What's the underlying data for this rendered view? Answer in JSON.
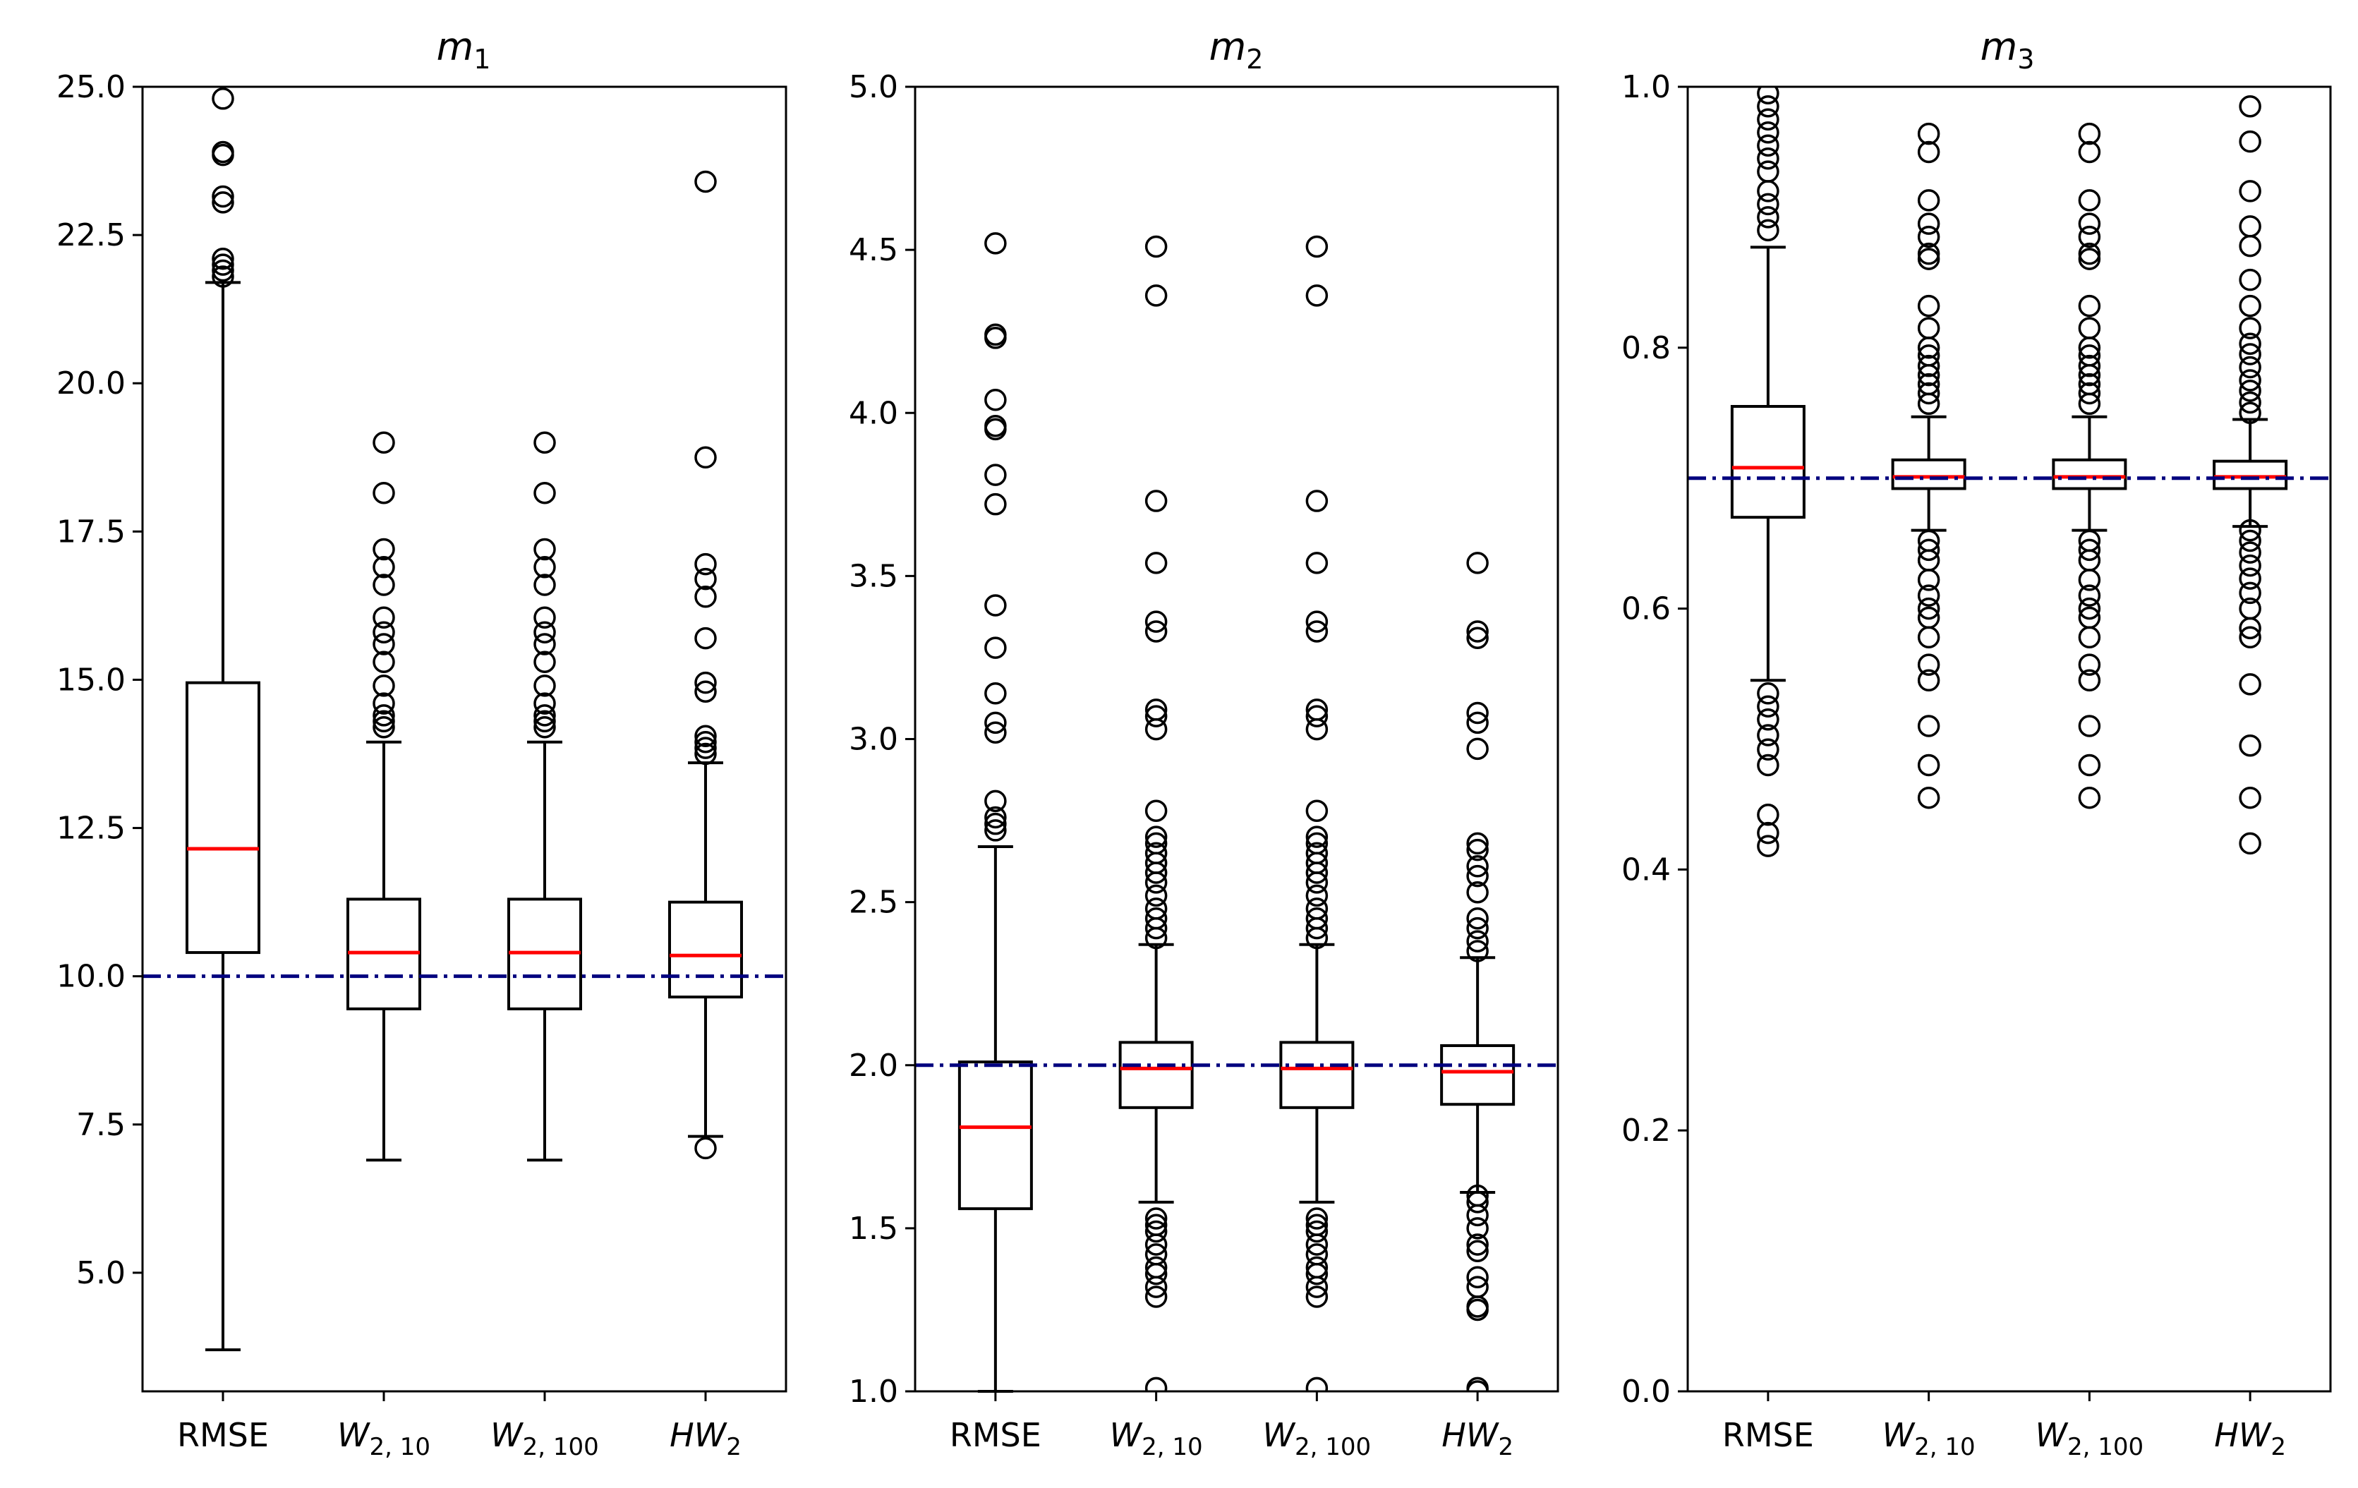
{
  "colors": {
    "box": "#000000",
    "median": "#ff0000",
    "reference_line": "#00007f",
    "background": "#ffffff"
  },
  "chart_data": [
    {
      "type": "box",
      "title": "m",
      "title_subscript": "1",
      "categories": [
        "RMSE",
        "W_{2,10}",
        "W_{2,100}",
        "HW_2"
      ],
      "category_labels": [
        {
          "base": "RMSE",
          "sub": "",
          "italic": false
        },
        {
          "base": "W",
          "sub": "2, 10",
          "italic": true
        },
        {
          "base": "W",
          "sub": "2, 100",
          "italic": true
        },
        {
          "base": "HW",
          "sub": "2",
          "italic": true
        }
      ],
      "ylim": [
        3.0,
        25.0
      ],
      "yticks": [
        5.0,
        7.5,
        10.0,
        12.5,
        15.0,
        17.5,
        20.0,
        22.5,
        25.0
      ],
      "ytick_labels": [
        "5.0",
        "7.5",
        "10.0",
        "12.5",
        "15.0",
        "17.5",
        "20.0",
        "22.5",
        "25.0"
      ],
      "reference_value": 10.0,
      "boxes": [
        {
          "whisker_low": 3.7,
          "q1": 10.4,
          "median": 12.15,
          "q3": 14.95,
          "whisker_high": 21.7,
          "outliers": [
            21.8,
            21.9,
            22.0,
            22.1,
            23.05,
            23.15,
            23.85,
            23.9,
            24.8
          ]
        },
        {
          "whisker_low": 6.9,
          "q1": 9.45,
          "median": 10.4,
          "q3": 11.3,
          "whisker_high": 13.95,
          "outliers": [
            14.2,
            14.3,
            14.4,
            14.6,
            14.9,
            15.3,
            15.6,
            15.8,
            16.05,
            16.6,
            16.9,
            17.2,
            18.15,
            19.0
          ]
        },
        {
          "whisker_low": 6.9,
          "q1": 9.45,
          "median": 10.4,
          "q3": 11.3,
          "whisker_high": 13.95,
          "outliers": [
            14.2,
            14.3,
            14.4,
            14.6,
            14.9,
            15.3,
            15.6,
            15.8,
            16.05,
            16.6,
            16.9,
            17.2,
            18.15,
            19.0
          ]
        },
        {
          "whisker_low": 7.3,
          "q1": 9.65,
          "median": 10.35,
          "q3": 11.25,
          "whisker_high": 13.6,
          "outliers": [
            7.1,
            13.75,
            13.85,
            13.95,
            14.05,
            14.8,
            14.95,
            15.7,
            16.4,
            16.7,
            16.95,
            18.75,
            23.4
          ]
        }
      ]
    },
    {
      "type": "box",
      "title": "m",
      "title_subscript": "2",
      "categories": [
        "RMSE",
        "W_{2,10}",
        "W_{2,100}",
        "HW_2"
      ],
      "category_labels": [
        {
          "base": "RMSE",
          "sub": "",
          "italic": false
        },
        {
          "base": "W",
          "sub": "2, 10",
          "italic": true
        },
        {
          "base": "W",
          "sub": "2, 100",
          "italic": true
        },
        {
          "base": "HW",
          "sub": "2",
          "italic": true
        }
      ],
      "ylim": [
        1.0,
        5.0
      ],
      "yticks": [
        1.0,
        1.5,
        2.0,
        2.5,
        3.0,
        3.5,
        4.0,
        4.5,
        5.0
      ],
      "ytick_labels": [
        "1.0",
        "1.5",
        "2.0",
        "2.5",
        "3.0",
        "3.5",
        "4.0",
        "4.5",
        "5.0"
      ],
      "reference_value": 2.0,
      "boxes": [
        {
          "whisker_low": 1.0,
          "q1": 1.56,
          "median": 1.81,
          "q3": 2.01,
          "whisker_high": 2.67,
          "outliers": [
            2.72,
            2.74,
            2.76,
            2.81,
            3.02,
            3.05,
            3.14,
            3.28,
            3.41,
            3.72,
            3.81,
            3.95,
            3.96,
            4.04,
            4.23,
            4.24,
            4.52
          ]
        },
        {
          "whisker_low": 1.58,
          "q1": 1.87,
          "median": 1.99,
          "q3": 2.07,
          "whisker_high": 2.37,
          "outliers": [
            1.01,
            1.29,
            1.32,
            1.36,
            1.38,
            1.42,
            1.45,
            1.49,
            1.51,
            1.53,
            2.39,
            2.42,
            2.45,
            2.48,
            2.52,
            2.56,
            2.59,
            2.62,
            2.65,
            2.68,
            2.7,
            2.78,
            3.03,
            3.07,
            3.09,
            3.33,
            3.36,
            3.54,
            3.73,
            4.36,
            4.51
          ]
        },
        {
          "whisker_low": 1.58,
          "q1": 1.87,
          "median": 1.99,
          "q3": 2.07,
          "whisker_high": 2.37,
          "outliers": [
            1.01,
            1.29,
            1.32,
            1.36,
            1.38,
            1.42,
            1.45,
            1.49,
            1.51,
            1.53,
            2.39,
            2.42,
            2.45,
            2.48,
            2.52,
            2.56,
            2.59,
            2.62,
            2.65,
            2.68,
            2.7,
            2.78,
            3.03,
            3.07,
            3.09,
            3.33,
            3.36,
            3.54,
            3.73,
            4.36,
            4.51
          ]
        },
        {
          "whisker_low": 1.61,
          "q1": 1.88,
          "median": 1.98,
          "q3": 2.06,
          "whisker_high": 2.33,
          "outliers": [
            1.0,
            1.01,
            1.25,
            1.26,
            1.32,
            1.35,
            1.43,
            1.45,
            1.5,
            1.54,
            1.58,
            1.6,
            2.35,
            2.38,
            2.42,
            2.45,
            2.53,
            2.58,
            2.61,
            2.66,
            2.68,
            2.97,
            3.05,
            3.08,
            3.31,
            3.33,
            3.54
          ]
        }
      ]
    },
    {
      "type": "box",
      "title": "m",
      "title_subscript": "3",
      "categories": [
        "RMSE",
        "W_{2,10}",
        "W_{2,100}",
        "HW_2"
      ],
      "category_labels": [
        {
          "base": "RMSE",
          "sub": "",
          "italic": false
        },
        {
          "base": "W",
          "sub": "2, 10",
          "italic": true
        },
        {
          "base": "W",
          "sub": "2, 100",
          "italic": true
        },
        {
          "base": "HW",
          "sub": "2",
          "italic": true
        }
      ],
      "ylim": [
        0.0,
        1.0
      ],
      "yticks": [
        0.0,
        0.2,
        0.4,
        0.6,
        0.8,
        1.0
      ],
      "ytick_labels": [
        "0.0",
        "0.2",
        "0.4",
        "0.6",
        "0.8",
        "1.0"
      ],
      "reference_value": 0.7,
      "boxes": [
        {
          "whisker_low": 0.545,
          "q1": 0.67,
          "median": 0.708,
          "q3": 0.755,
          "whisker_high": 0.877,
          "outliers": [
            0.418,
            0.428,
            0.442,
            0.48,
            0.492,
            0.503,
            0.515,
            0.525,
            0.535,
            0.89,
            0.9,
            0.91,
            0.92,
            0.935,
            0.945,
            0.955,
            0.965,
            0.975,
            0.985,
            0.995
          ]
        },
        {
          "whisker_low": 0.66,
          "q1": 0.692,
          "median": 0.701,
          "q3": 0.714,
          "whisker_high": 0.747,
          "outliers": [
            0.455,
            0.48,
            0.51,
            0.545,
            0.557,
            0.578,
            0.593,
            0.6,
            0.61,
            0.622,
            0.637,
            0.645,
            0.652,
            0.757,
            0.765,
            0.772,
            0.779,
            0.786,
            0.794,
            0.8,
            0.815,
            0.832,
            0.868,
            0.872,
            0.885,
            0.895,
            0.913,
            0.95,
            0.964
          ]
        },
        {
          "whisker_low": 0.66,
          "q1": 0.692,
          "median": 0.701,
          "q3": 0.714,
          "whisker_high": 0.747,
          "outliers": [
            0.455,
            0.48,
            0.51,
            0.545,
            0.557,
            0.578,
            0.593,
            0.6,
            0.61,
            0.622,
            0.637,
            0.645,
            0.652,
            0.757,
            0.765,
            0.772,
            0.779,
            0.786,
            0.794,
            0.8,
            0.815,
            0.832,
            0.868,
            0.872,
            0.885,
            0.895,
            0.913,
            0.95,
            0.964
          ]
        },
        {
          "whisker_low": 0.663,
          "q1": 0.692,
          "median": 0.701,
          "q3": 0.713,
          "whisker_high": 0.745,
          "outliers": [
            0.42,
            0.455,
            0.495,
            0.542,
            0.578,
            0.585,
            0.6,
            0.612,
            0.623,
            0.633,
            0.643,
            0.652,
            0.66,
            0.75,
            0.758,
            0.767,
            0.775,
            0.785,
            0.795,
            0.803,
            0.815,
            0.832,
            0.852,
            0.878,
            0.893,
            0.92,
            0.958,
            0.985
          ]
        }
      ]
    }
  ]
}
